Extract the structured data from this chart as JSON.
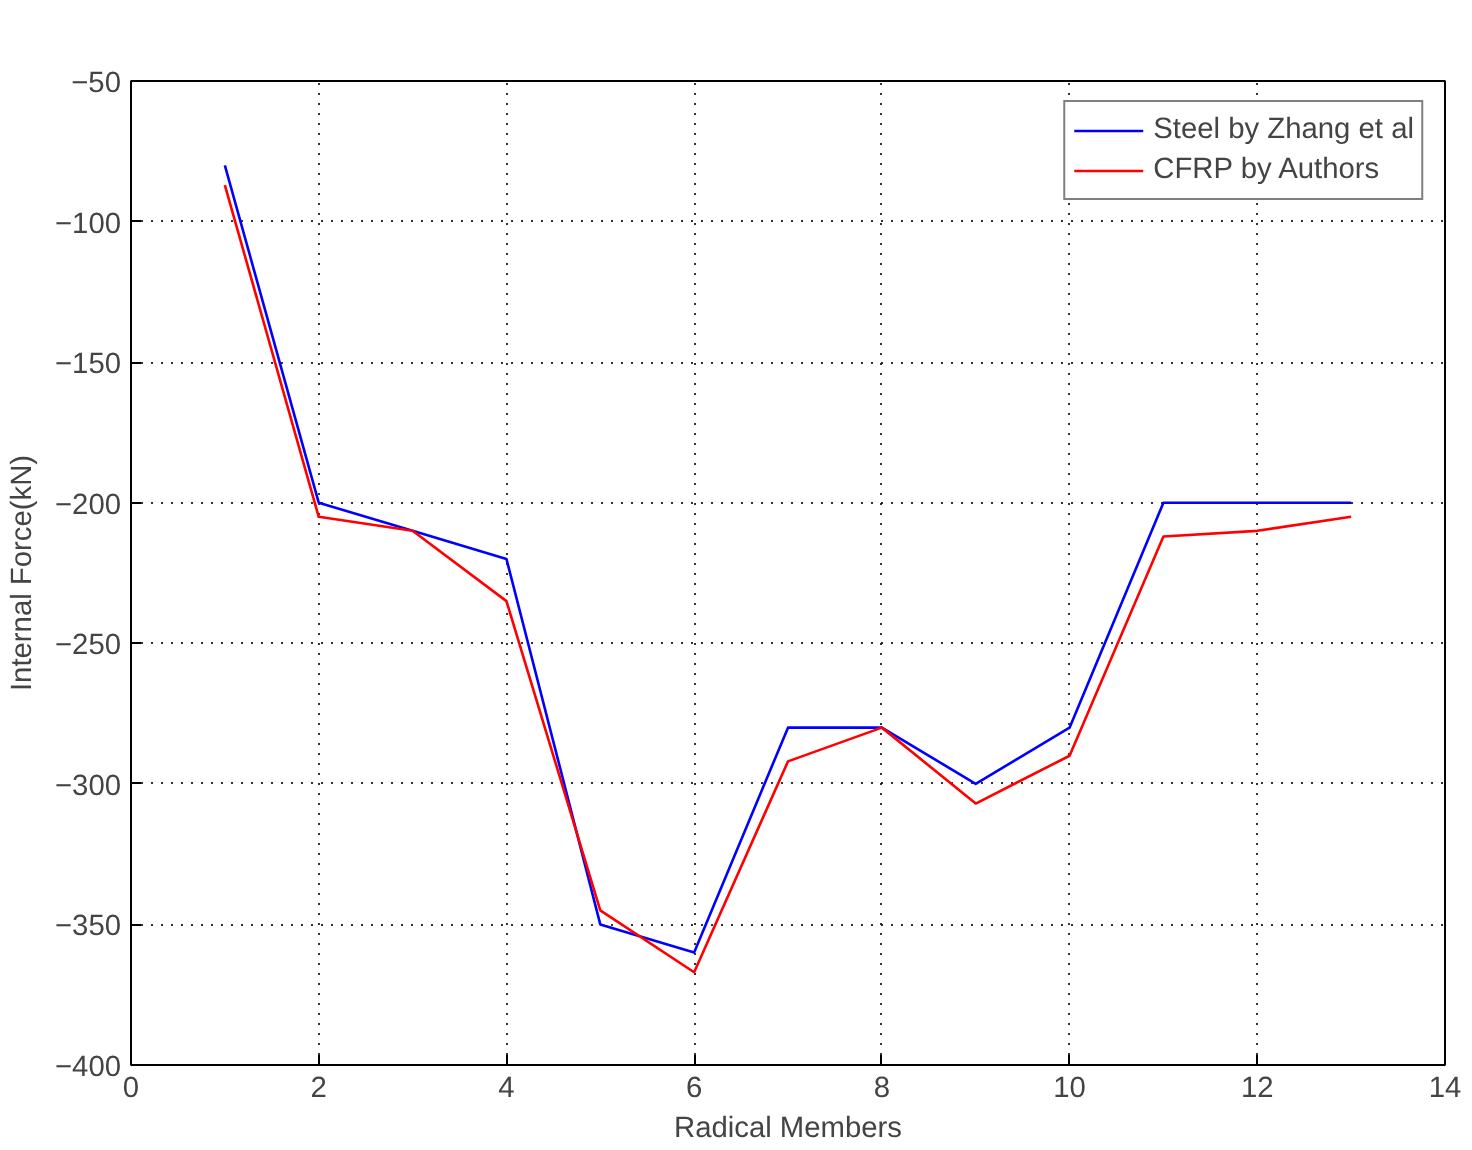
{
  "chart_data": {
    "type": "line",
    "xlabel": "Radical Members",
    "ylabel": "Internal Force(kN)",
    "x": [
      1,
      2,
      3,
      4,
      5,
      6,
      7,
      8,
      9,
      10,
      11,
      12,
      13
    ],
    "series": [
      {
        "name": "Steel by Zhang et al",
        "color": "#0000ff",
        "values": [
          -80,
          -200,
          -210,
          -220,
          -350,
          -360,
          -280,
          -280,
          -300,
          -280,
          -200,
          -200,
          -200
        ]
      },
      {
        "name": "CFRP by Authors",
        "color": "#ff0000",
        "values": [
          -87,
          -205,
          -210,
          -235,
          -345,
          -367,
          -292,
          -280,
          -307,
          -290,
          -212,
          -210,
          -205
        ]
      }
    ],
    "xlim": [
      0,
      14
    ],
    "xticks": [
      0,
      2,
      4,
      6,
      8,
      10,
      12,
      14
    ],
    "ylim": [
      -400,
      -50
    ],
    "yticks": [
      -400,
      -350,
      -300,
      -250,
      -200,
      -150,
      -100,
      -50
    ],
    "grid": true,
    "legend": "top right",
    "marker": "none",
    "line_style": "solid"
  }
}
